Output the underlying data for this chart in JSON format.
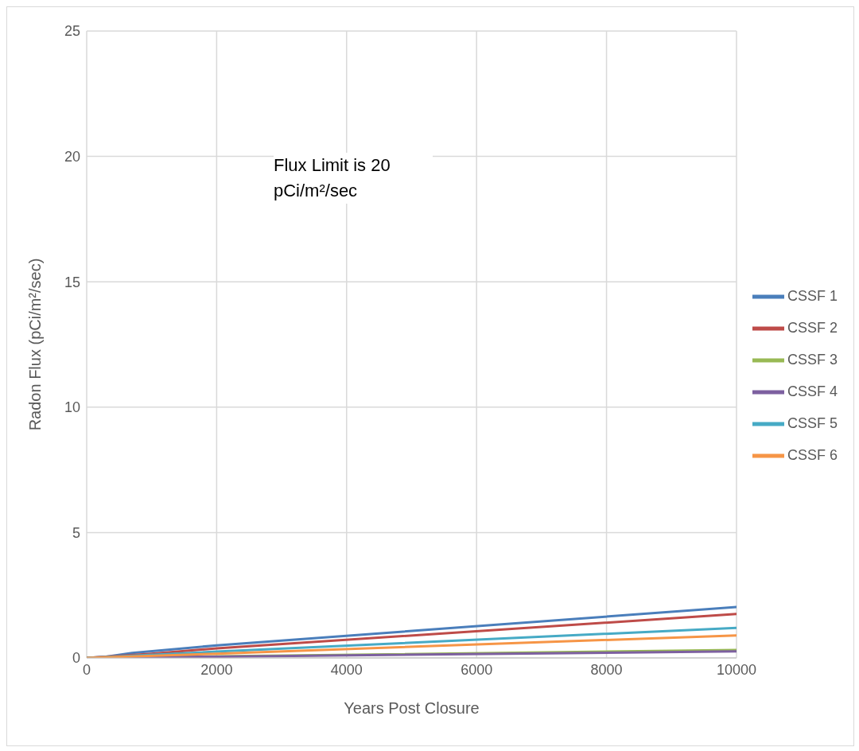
{
  "chart_data": {
    "type": "line",
    "xlabel": "Years Post Closure",
    "ylabel": "Radon Flux (pCi/m²/sec)",
    "xlim": [
      0,
      10000
    ],
    "xticks": [
      0,
      2000,
      4000,
      6000,
      8000,
      10000
    ],
    "ylim": [
      0,
      25
    ],
    "yticks": [
      0,
      5,
      10,
      15,
      20,
      25
    ],
    "grid": true,
    "legend": "right",
    "marker": "none",
    "line_style": "solid",
    "annotations": [
      "Flux Limit is 20 pCi/m²/sec"
    ],
    "series": [
      {
        "name": "CSSF 1",
        "color": "#4a7ebb",
        "x": [
          0,
          300,
          700,
          2000,
          10000
        ],
        "values": [
          0,
          0.05,
          0.2,
          0.5,
          2.03
        ]
      },
      {
        "name": "CSSF 2",
        "color": "#be4b48",
        "x": [
          0,
          1000,
          2000,
          10000
        ],
        "values": [
          0,
          0.17,
          0.38,
          1.75
        ]
      },
      {
        "name": "CSSF 3",
        "color": "#98b954",
        "x": [
          0,
          2000,
          10000
        ],
        "values": [
          0,
          0.06,
          0.32
        ]
      },
      {
        "name": "CSSF 4",
        "color": "#7d60a0",
        "x": [
          0,
          2000,
          10000
        ],
        "values": [
          0,
          0.05,
          0.26
        ]
      },
      {
        "name": "CSSF 5",
        "color": "#46aac5",
        "x": [
          0,
          2000,
          10000
        ],
        "values": [
          0,
          0.25,
          1.2
        ]
      },
      {
        "name": "CSSF 6",
        "color": "#f69546",
        "x": [
          0,
          2000,
          10000
        ],
        "values": [
          0,
          0.17,
          0.9
        ]
      }
    ]
  }
}
